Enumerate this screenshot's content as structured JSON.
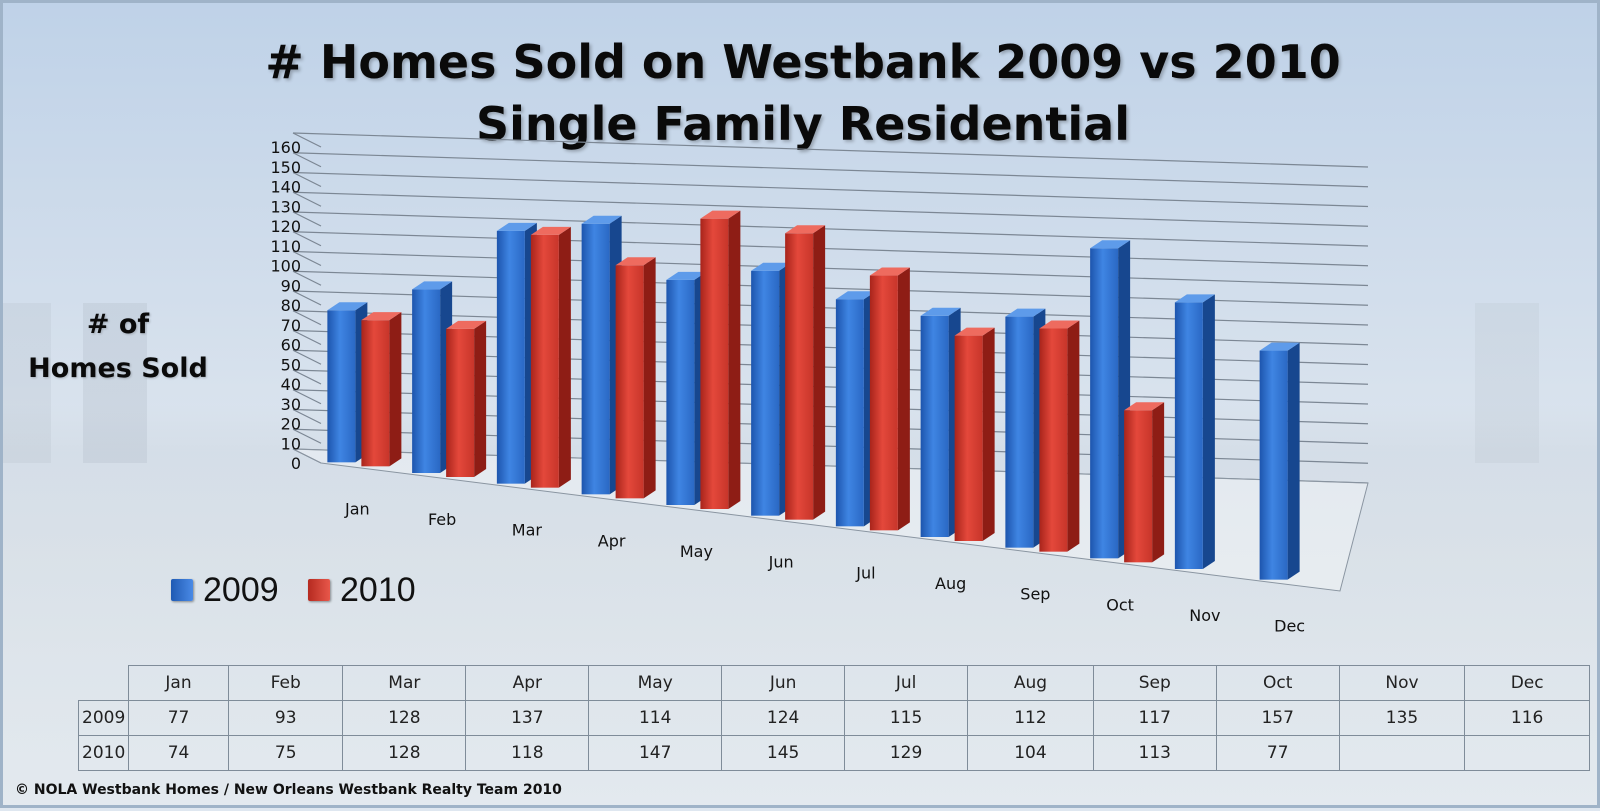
{
  "chart_data": {
    "type": "bar",
    "title_line1": "# Homes Sold on Westbank 2009 vs 2010",
    "title_line2": "Single Family Residential",
    "ylabel_line1": "# of",
    "ylabel_line2": "Homes Sold",
    "categories": [
      "Jan",
      "Feb",
      "Mar",
      "Apr",
      "May",
      "Jun",
      "Jul",
      "Aug",
      "Sep",
      "Oct",
      "Nov",
      "Dec"
    ],
    "series": [
      {
        "name": "2009",
        "color": "#2f6fcf",
        "values": [
          77,
          93,
          128,
          137,
          114,
          124,
          115,
          112,
          117,
          157,
          135,
          116
        ]
      },
      {
        "name": "2010",
        "color": "#d63a2e",
        "values": [
          74,
          75,
          128,
          118,
          147,
          145,
          129,
          104,
          113,
          77,
          null,
          null
        ]
      }
    ],
    "ylim": [
      0,
      160
    ],
    "yticks": [
      0,
      10,
      20,
      30,
      40,
      50,
      60,
      70,
      80,
      90,
      100,
      110,
      120,
      130,
      140,
      150,
      160
    ],
    "grid": true,
    "legend_position": "bottom-left"
  },
  "table": {
    "headers": [
      "Jan",
      "Feb",
      "Mar",
      "Apr",
      "May",
      "Jun",
      "Jul",
      "Aug",
      "Sep",
      "Oct",
      "Nov",
      "Dec"
    ],
    "rows": [
      {
        "label": "2009",
        "cells": [
          "77",
          "93",
          "128",
          "137",
          "114",
          "124",
          "115",
          "112",
          "117",
          "157",
          "135",
          "116"
        ]
      },
      {
        "label": "2010",
        "cells": [
          "74",
          "75",
          "128",
          "118",
          "147",
          "145",
          "129",
          "104",
          "113",
          "77",
          "",
          ""
        ]
      }
    ]
  },
  "footer": "© NOLA Westbank Homes / New Orleans Westbank Realty Team 2010"
}
